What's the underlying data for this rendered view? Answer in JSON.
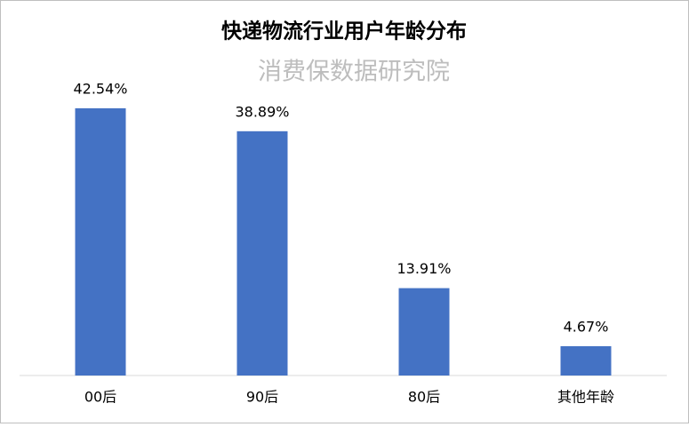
{
  "chart_data": {
    "type": "bar",
    "title": "快递物流行业用户年龄分布",
    "subtitle": "消费保数据研究院",
    "categories": [
      "00后",
      "90后",
      "80后",
      "其他年龄"
    ],
    "values": [
      42.54,
      38.89,
      13.91,
      4.67
    ],
    "value_labels": [
      "42.54%",
      "38.89%",
      "13.91%",
      "4.67%"
    ],
    "color": "#4472c4"
  }
}
